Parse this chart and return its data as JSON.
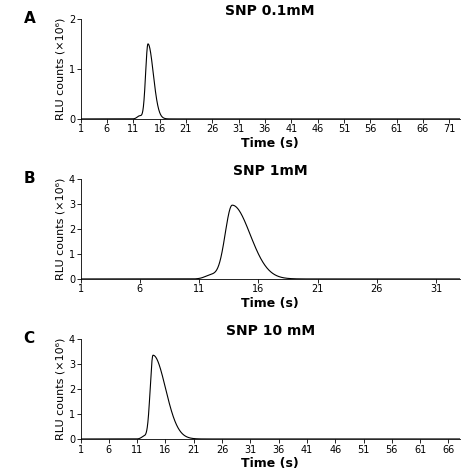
{
  "panels": [
    {
      "label": "A",
      "title": "SNP 0.1mM",
      "peak_time": 13.8,
      "peak_value": 1.5,
      "rise_sigma": 0.45,
      "decay_sigma": 1.0,
      "pre_bump_time": 12.2,
      "pre_bump_value": 0.06,
      "pre_bump_sigma": 0.45,
      "ylim": [
        0,
        2
      ],
      "yticks": [
        0,
        1,
        2
      ],
      "xticks": [
        1,
        6,
        11,
        16,
        21,
        26,
        31,
        36,
        41,
        46,
        51,
        56,
        61,
        66,
        71
      ],
      "xlim": [
        1,
        73
      ]
    },
    {
      "label": "B",
      "title": "SNP 1mM",
      "peak_time": 13.8,
      "peak_value": 2.95,
      "rise_sigma": 0.6,
      "decay_sigma": 1.5,
      "pre_bump_time": 12.0,
      "pre_bump_value": 0.15,
      "pre_bump_sigma": 0.5,
      "ylim": [
        0,
        4
      ],
      "yticks": [
        0,
        1,
        2,
        3,
        4
      ],
      "xticks": [
        1,
        6,
        11,
        16,
        21,
        26,
        31
      ],
      "xlim": [
        1,
        33
      ]
    },
    {
      "label": "C",
      "title": "SNP 10 mM",
      "peak_time": 13.8,
      "peak_value": 3.35,
      "rise_sigma": 0.5,
      "decay_sigma": 2.2,
      "pre_bump_time": 12.2,
      "pre_bump_value": 0.1,
      "pre_bump_sigma": 0.45,
      "ylim": [
        0,
        4
      ],
      "yticks": [
        0,
        1,
        2,
        3,
        4
      ],
      "xticks": [
        1,
        6,
        11,
        16,
        21,
        26,
        31,
        36,
        41,
        46,
        51,
        56,
        61,
        66
      ],
      "xlim": [
        1,
        68
      ]
    }
  ],
  "ylabel": "RLU counts (×10⁶)",
  "xlabel": "Time (s)",
  "background_color": "#ffffff",
  "line_color": "#000000",
  "label_fontsize": 11,
  "title_fontsize": 10,
  "tick_fontsize": 7,
  "axis_label_fontsize": 8,
  "xlabel_fontsize": 9
}
